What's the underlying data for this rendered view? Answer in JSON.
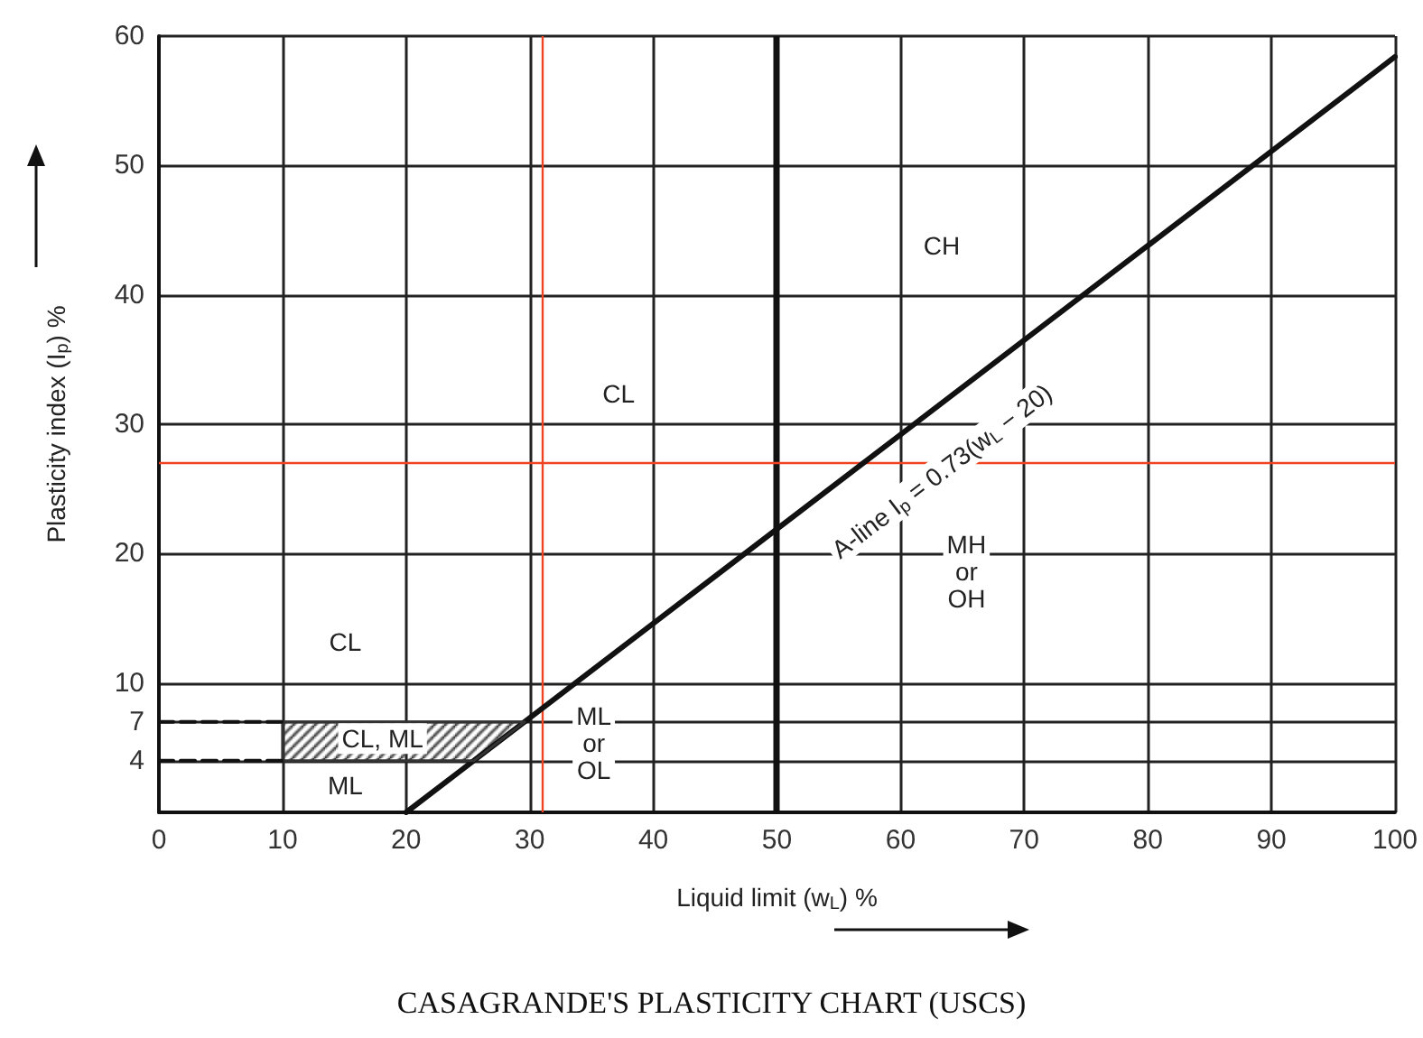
{
  "chart_data": {
    "type": "line",
    "title": "CASAGRANDE'S PLASTICITY CHART (USCS)",
    "xlabel": "Liquid limit (w$_{L}$) %",
    "ylabel": "Plasticity index (I$_{p}$) %",
    "xlim": [
      0,
      100
    ],
    "xticks": [
      0,
      10,
      20,
      30,
      40,
      50,
      60,
      70,
      80,
      90,
      100
    ],
    "ylim": [
      0,
      60
    ],
    "yticks": [
      {
        "value": 0,
        "label": null
      },
      4,
      7,
      10,
      20,
      30,
      40,
      50,
      60
    ],
    "grid": true,
    "marker": "none",
    "series": [
      {
        "color": "#111111",
        "x": [
          20,
          100
        ],
        "values": [
          0,
          58.4
        ]
      },
      {
        "type": "area",
        "color": "#333333",
        "x": [
          10,
          29.6,
          25.5,
          10,
          10
        ],
        "values": [
          7,
          7,
          4,
          4,
          7
        ]
      },
      {
        "color": "#111111",
        "line_style": "dashed",
        "x": [
          0,
          10
        ],
        "values": [
          4,
          4
        ]
      },
      {
        "color": "#111111",
        "line_style": "dashed",
        "x": [
          0,
          10
        ],
        "values": [
          7,
          7
        ]
      }
    ],
    "ref_lines": [
      {
        "axis": "x",
        "value": 50
      },
      {
        "axis": "x",
        "value": 31,
        "color": "#ee4422"
      },
      {
        "axis": "y",
        "value": 27,
        "color": "#ee4422"
      }
    ],
    "annotations": [
      "A-line I$_{p}$ = 0.73(w$_{L}$ − 20)",
      "CH",
      "CL",
      "CL",
      "CL, ML",
      "ML",
      "ML\nor\nOL",
      "MH\nor\nOH"
    ]
  }
}
